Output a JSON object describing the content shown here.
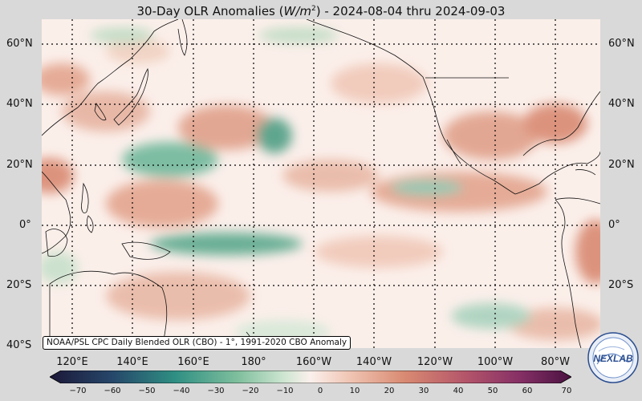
{
  "title": {
    "prefix": "30-Day OLR Anomalies (",
    "unit_main": "W/m",
    "unit_exp": "2",
    "suffix": ") - 2024-08-04 thru 2024-09-03"
  },
  "map": {
    "lat_labels": [
      "60°N",
      "40°N",
      "20°N",
      "0°",
      "20°S",
      "40°S"
    ],
    "lon_labels": [
      "120°E",
      "140°E",
      "160°E",
      "180°",
      "160°W",
      "140°W",
      "120°W",
      "100°W",
      "80°W"
    ],
    "grid_lines": "dotted",
    "credit": "NOAA/PSL CPC Daily Blended OLR (CBO) - 1°, 1991-2020 CBO Anomaly"
  },
  "colorbar": {
    "ticks": [
      "−70",
      "−60",
      "−50",
      "−40",
      "−30",
      "−20",
      "−10",
      "0",
      "10",
      "20",
      "30",
      "40",
      "50",
      "60",
      "70"
    ],
    "colors": {
      "strong_negative": "#2b1d4e",
      "negative": "#2f8f83",
      "weak_negative": "#bfdcc4",
      "neutral": "#fbf0ec",
      "weak_positive": "#efc2b0",
      "positive": "#d98a72",
      "strong_positive": "#5c1758"
    }
  },
  "logo": {
    "text": "NEXLAB"
  }
}
